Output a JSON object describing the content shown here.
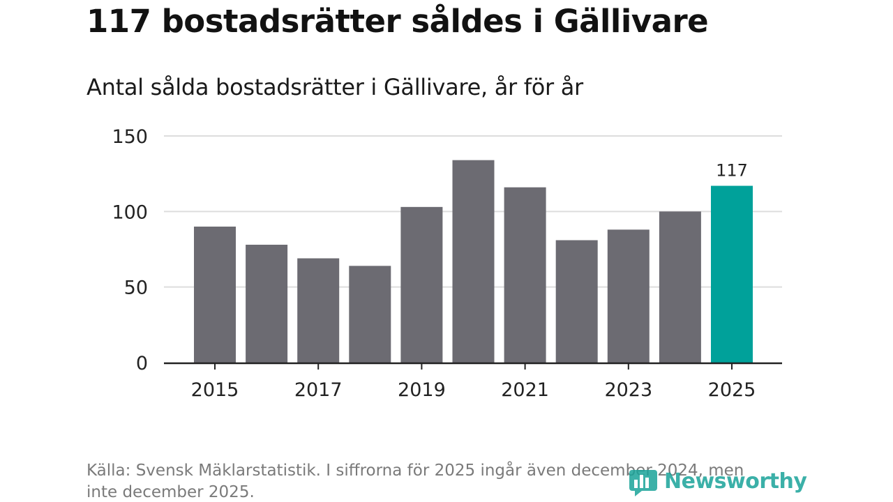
{
  "title": "117 bostadsrätter såldes i Gällivare",
  "subtitle": "Antal sålda bostadsrätter i Gällivare, år för år",
  "source": "Källa: Svensk Mäklarstatistik. I siffrorna för 2025 ingår även december 2024, men inte december 2025.",
  "logo": {
    "text": "Newsworthy",
    "icon": "bar-chart-logo-icon"
  },
  "colors": {
    "bar": "#6c6b72",
    "highlight": "#00a19a",
    "grid": "#dddddd",
    "axis": "#222222"
  },
  "chart_data": {
    "type": "bar",
    "title": "Antal sålda bostadsrätter i Gällivare, år för år",
    "xlabel": "",
    "ylabel": "",
    "categories": [
      "2015",
      "2016",
      "2017",
      "2018",
      "2019",
      "2020",
      "2021",
      "2022",
      "2023",
      "2024",
      "2025"
    ],
    "values": [
      90,
      78,
      69,
      64,
      103,
      134,
      116,
      81,
      88,
      100,
      117
    ],
    "highlight_category": "2025",
    "data_labels": [
      {
        "category": "2025",
        "text": "117"
      }
    ],
    "xticks": [
      "2015",
      "2017",
      "2019",
      "2021",
      "2023",
      "2025"
    ],
    "yticks": [
      0,
      50,
      100,
      150
    ],
    "ylim": [
      0,
      150
    ],
    "grid": true
  }
}
